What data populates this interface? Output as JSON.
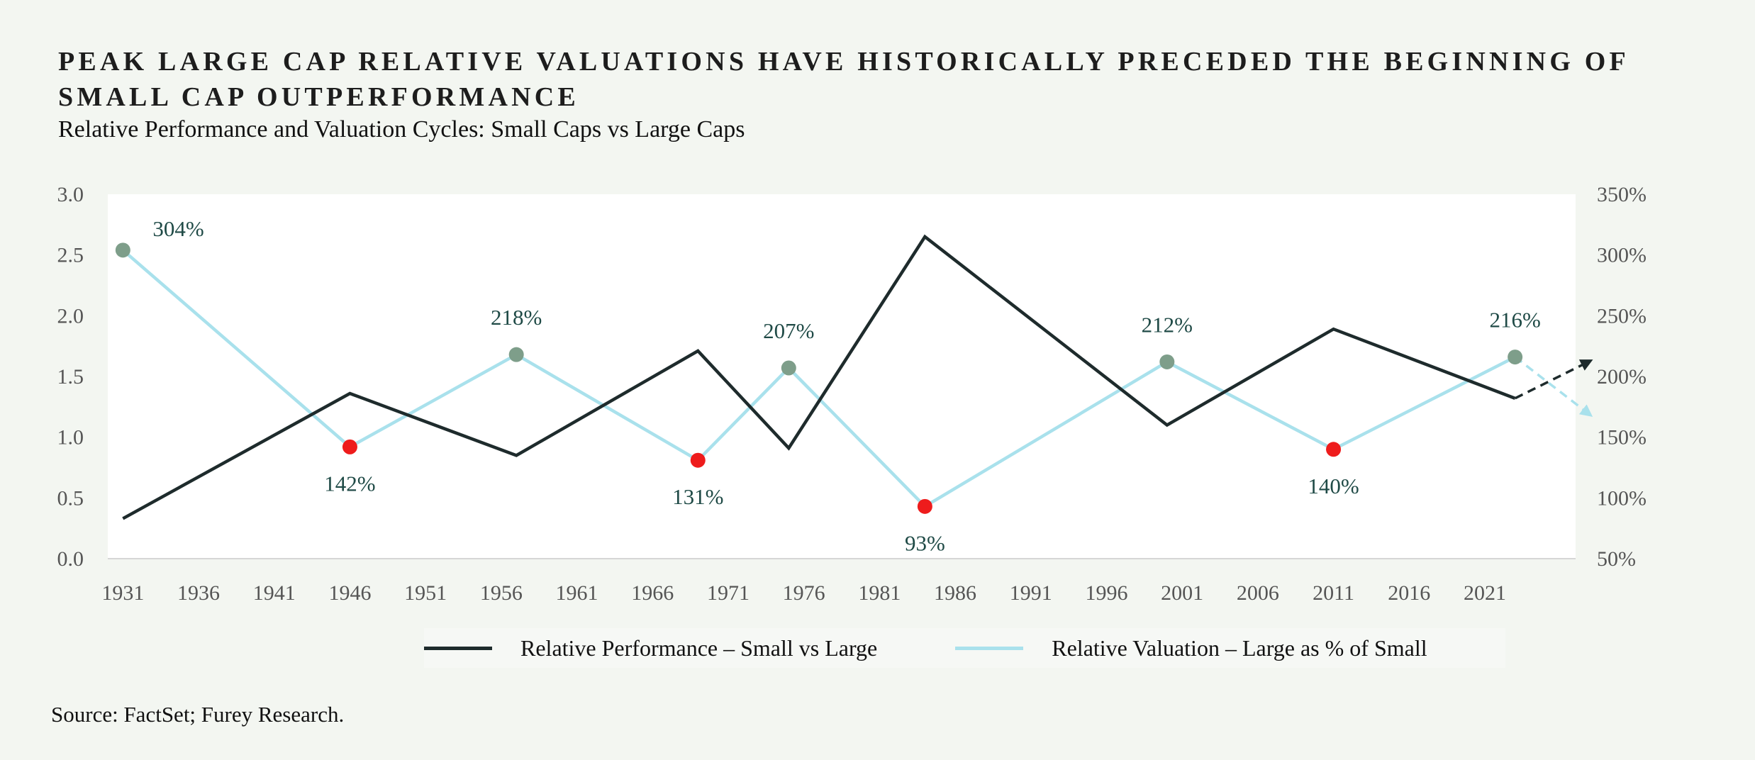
{
  "header": {
    "title": "Peak Large Cap Relative Valuations Have Historically Preceded the Beginning of Small Cap Outperformance",
    "subtitle": "Relative Performance and Valuation Cycles: Small Caps vs Large Caps"
  },
  "source": "Source: FactSet; Furey Research.",
  "colors": {
    "performance": "#1e2b2c",
    "valuation": "#a9e1ec",
    "peak_marker": "#7e9e8a",
    "trough_marker": "#ee1c1c",
    "value_label": "#1f4a46",
    "plot_bg": "#ffffff",
    "page_bg": "#f3f6f1"
  },
  "chart_data": {
    "type": "line",
    "title": "Relative Performance and Valuation Cycles: Small Caps vs Large Caps",
    "x_range": [
      1930,
      2027
    ],
    "x_ticks": [
      1931,
      1936,
      1941,
      1946,
      1951,
      1956,
      1961,
      1966,
      1971,
      1976,
      1981,
      1986,
      1991,
      1996,
      2001,
      2006,
      2011,
      2016,
      2021
    ],
    "y_left": {
      "range": [
        0,
        3.0
      ],
      "ticks": [
        "0.0",
        "0.5",
        "1.0",
        "1.5",
        "2.0",
        "2.5",
        "3.0"
      ]
    },
    "y_right": {
      "range": [
        50,
        350
      ],
      "ticks": [
        "50%",
        "100%",
        "150%",
        "200%",
        "250%",
        "300%",
        "350%"
      ]
    },
    "grid": false,
    "legend_position": "bottom-center",
    "series": [
      {
        "name": "Relative Performance – Small vs Large",
        "axis": "left",
        "x": [
          1931,
          1946,
          1957,
          1969,
          1975,
          1984,
          2000,
          2011,
          2023
        ],
        "y": [
          0.33,
          1.36,
          0.85,
          1.71,
          0.91,
          2.65,
          1.1,
          1.89,
          1.32
        ],
        "projection": {
          "x": [
            2023,
            2028
          ],
          "y": [
            1.32,
            1.63
          ],
          "direction": "up"
        }
      },
      {
        "name": "Relative Valuation – Large as % of Small",
        "axis": "right",
        "x": [
          1931,
          1946,
          1957,
          1969,
          1975,
          1984,
          2000,
          2011,
          2023
        ],
        "y": [
          304,
          142,
          218,
          131,
          207,
          93,
          212,
          140,
          216
        ],
        "labels": [
          "304%",
          "142%",
          "218%",
          "131%",
          "207%",
          "93%",
          "212%",
          "140%",
          "216%"
        ],
        "marker_types": [
          "peak",
          "trough",
          "peak",
          "trough",
          "peak",
          "trough",
          "peak",
          "trough",
          "peak"
        ],
        "projection": {
          "x": [
            2023,
            2028
          ],
          "y": [
            216,
            168
          ],
          "direction": "down"
        }
      }
    ]
  }
}
